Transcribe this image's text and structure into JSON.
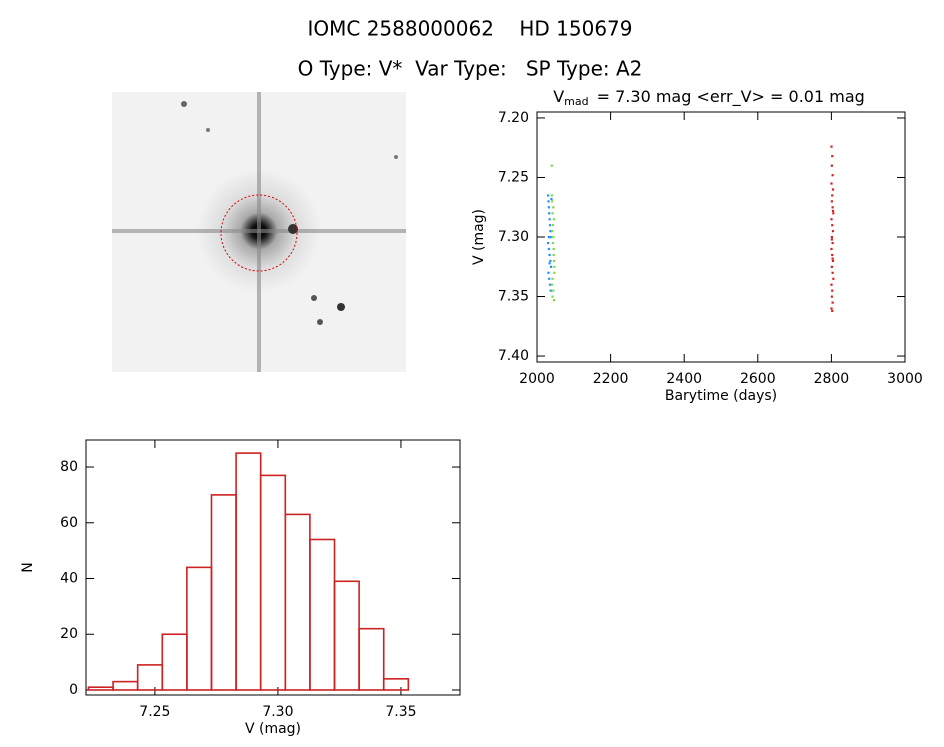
{
  "header": {
    "title": "IOMC 2588000062    HD 150679",
    "subtitle": "O Type: V*  Var Type:   SP Type: A2"
  },
  "chart_data": [
    {
      "type": "scatter",
      "title": {
        "main": "V",
        "sub": "mad",
        "rest": "= 7.30 mag <err_V> = 0.01 mag"
      },
      "x_label": "Barytime (days)",
      "y_label": "V (mag)",
      "xlim": [
        2000,
        3000
      ],
      "xticks": [
        2000,
        2200,
        2400,
        2600,
        2800,
        3000
      ],
      "ylim": [
        7.405,
        7.195
      ],
      "yticks": [
        {
          "value": 7.2,
          "label": "7.20"
        },
        {
          "value": 7.25,
          "label": "7.25"
        },
        {
          "value": 7.3,
          "label": "7.30"
        },
        {
          "value": 7.35,
          "label": "7.35"
        },
        {
          "value": 7.4,
          "label": "7.40"
        }
      ],
      "series": [
        {
          "color": "#1e90ff",
          "x": [
            2030,
            2031,
            2032,
            2033,
            2034,
            2035,
            2036,
            2037,
            2030,
            2032,
            2034,
            2036,
            2038,
            2031,
            2033,
            2035,
            2037,
            2039,
            2032,
            2034
          ],
          "y": [
            7.265,
            7.27,
            7.275,
            7.28,
            7.285,
            7.29,
            7.295,
            7.3,
            7.305,
            7.31,
            7.315,
            7.32,
            7.325,
            7.33,
            7.335,
            7.34,
            7.345,
            7.268,
            7.3,
            7.322
          ]
        },
        {
          "color": "#7fdc3a",
          "x": [
            2040,
            2041,
            2042,
            2043,
            2044,
            2045,
            2046,
            2047,
            2040,
            2042,
            2044,
            2046,
            2041,
            2043,
            2045,
            2047,
            2042,
            2044,
            2046,
            2040
          ],
          "y": [
            7.24,
            7.27,
            7.28,
            7.29,
            7.3,
            7.31,
            7.32,
            7.33,
            7.34,
            7.35,
            7.275,
            7.285,
            7.295,
            7.305,
            7.315,
            7.325,
            7.335,
            7.345,
            7.353,
            7.265
          ]
        },
        {
          "color": "#d62020",
          "x": [
            2800,
            2802,
            2801,
            2803,
            2800,
            2804,
            2802,
            2801,
            2803,
            2805,
            2800,
            2802,
            2804,
            2801,
            2803,
            2800,
            2802,
            2804,
            2801,
            2803,
            2805,
            2800,
            2802,
            2801,
            2803,
            2800,
            2802,
            2804,
            2801,
            2803
          ],
          "y": [
            7.224,
            7.232,
            7.24,
            7.248,
            7.255,
            7.26,
            7.265,
            7.27,
            7.275,
            7.28,
            7.285,
            7.29,
            7.295,
            7.3,
            7.305,
            7.31,
            7.315,
            7.32,
            7.325,
            7.33,
            7.335,
            7.34,
            7.345,
            7.35,
            7.355,
            7.36,
            7.362,
            7.278,
            7.302,
            7.318
          ]
        }
      ]
    },
    {
      "type": "histogram",
      "x_label": "V (mag)",
      "y_label": "N",
      "color": "#cc2222",
      "bins": [
        7.223,
        7.233,
        7.243,
        7.253,
        7.263,
        7.273,
        7.283,
        7.293,
        7.303,
        7.313,
        7.323,
        7.333,
        7.343,
        7.353
      ],
      "values": [
        1,
        3,
        9,
        20,
        44,
        70,
        85,
        77,
        63,
        54,
        39,
        22,
        4
      ],
      "xlim": [
        7.222,
        7.374
      ],
      "xticks": [
        {
          "value": 7.25,
          "label": "7.25"
        },
        {
          "value": 7.3,
          "label": "7.30"
        },
        {
          "value": 7.35,
          "label": "7.35"
        }
      ],
      "ylim": [
        -1.8,
        89.7
      ],
      "yticks": [
        0,
        20,
        40,
        60,
        80
      ]
    }
  ]
}
